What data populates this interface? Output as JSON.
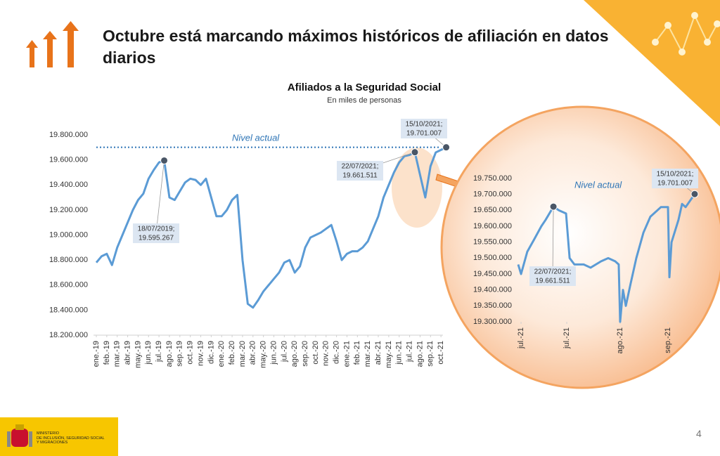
{
  "header": {
    "title": "Octubre está marcando máximos históricos de afiliación en datos diarios"
  },
  "footer": {
    "ministry": [
      "MINISTERIO",
      "DE INCLUSIÓN, SEGURIDAD SOCIAL",
      "Y MIGRACIONES"
    ],
    "page": "4"
  },
  "chart_data": [
    {
      "type": "line",
      "title": "Afiliados a la Seguridad Social",
      "subtitle": "En miles de personas",
      "x": [
        0,
        0.5,
        1,
        1.5,
        2,
        2.5,
        3,
        3.5,
        4,
        4.5,
        5,
        5.5,
        6,
        6.5,
        7,
        7.5,
        8,
        8.5,
        9,
        9.5,
        10,
        10.5,
        11,
        11.5,
        12,
        12.5,
        13,
        13.5,
        14,
        14.5,
        15,
        15.5,
        16,
        16.5,
        17,
        17.5,
        18,
        18.5,
        19,
        19.5,
        20,
        20.5,
        21,
        21.5,
        22,
        22.5,
        23,
        23.5,
        24,
        24.5,
        25,
        25.5,
        26,
        26.5,
        27,
        27.5,
        28,
        28.5,
        29,
        29.5,
        30,
        30.5,
        31,
        31.5,
        32,
        32.5,
        33,
        33.5
      ],
      "series": [
        {
          "color": "#5b9bd5",
          "values": [
            18780000,
            18830000,
            18850000,
            18760000,
            18900000,
            19000000,
            19100000,
            19200000,
            19280000,
            19330000,
            19450000,
            19520000,
            19580000,
            19595267,
            19300000,
            19280000,
            19350000,
            19420000,
            19450000,
            19440000,
            19400000,
            19450000,
            19300000,
            19150000,
            19150000,
            19200000,
            19280000,
            19320000,
            18800000,
            18450000,
            18420000,
            18480000,
            18550000,
            18600000,
            18650000,
            18700000,
            18780000,
            18800000,
            18700000,
            18750000,
            18900000,
            18980000,
            19000000,
            19020000,
            19050000,
            19080000,
            18950000,
            18800000,
            18850000,
            18870000,
            18870000,
            18900000,
            18950000,
            19050000,
            19150000,
            19300000,
            19400000,
            19500000,
            19580000,
            19630000,
            19640000,
            19661511,
            19480000,
            19300000,
            19550000,
            19660000,
            19680000,
            19701007
          ]
        }
      ],
      "xlim": [
        0,
        34
      ],
      "xticks": [
        {
          "value": 0,
          "label": "ene.-19"
        },
        {
          "value": 1,
          "label": "feb.-19"
        },
        {
          "value": 2,
          "label": "mar.-19"
        },
        {
          "value": 3,
          "label": "abr.-19"
        },
        {
          "value": 4,
          "label": "may.-19"
        },
        {
          "value": 5,
          "label": "jun.-19"
        },
        {
          "value": 6,
          "label": "jul.-19"
        },
        {
          "value": 7,
          "label": "ago.-19"
        },
        {
          "value": 8,
          "label": "sep.-19"
        },
        {
          "value": 9,
          "label": "oct.-19"
        },
        {
          "value": 10,
          "label": "nov.-19"
        },
        {
          "value": 11,
          "label": "dic.-19"
        },
        {
          "value": 12,
          "label": "ene.-20"
        },
        {
          "value": 13,
          "label": "feb.-20"
        },
        {
          "value": 14,
          "label": "mar.-20"
        },
        {
          "value": 15,
          "label": "abr.-20"
        },
        {
          "value": 16,
          "label": "may.-20"
        },
        {
          "value": 17,
          "label": "jun.-20"
        },
        {
          "value": 18,
          "label": "jul.-20"
        },
        {
          "value": 19,
          "label": "ago.-20"
        },
        {
          "value": 20,
          "label": "sep.-20"
        },
        {
          "value": 21,
          "label": "oct.-20"
        },
        {
          "value": 22,
          "label": "nov.-20"
        },
        {
          "value": 23,
          "label": "dic.-20"
        },
        {
          "value": 24,
          "label": "ene.-21"
        },
        {
          "value": 25,
          "label": "feb.-21"
        },
        {
          "value": 26,
          "label": "mar.-21"
        },
        {
          "value": 27,
          "label": "abr.-21"
        },
        {
          "value": 28,
          "label": "may.-21"
        },
        {
          "value": 29,
          "label": "jun.-21"
        },
        {
          "value": 30,
          "label": "jul.-21"
        },
        {
          "value": 31,
          "label": "ago.-21"
        },
        {
          "value": 32,
          "label": "sep.-21"
        },
        {
          "value": 33,
          "label": "oct.-21"
        }
      ],
      "ylim": [
        18200000,
        19800000
      ],
      "yticks": [
        {
          "value": 18200000,
          "label": "18.200.000"
        },
        {
          "value": 18400000,
          "label": "18.400.000"
        },
        {
          "value": 18600000,
          "label": "18.600.000"
        },
        {
          "value": 18800000,
          "label": "18.800.000"
        },
        {
          "value": 19000000,
          "label": "19.000.000"
        },
        {
          "value": 19200000,
          "label": "19.200.000"
        },
        {
          "value": 19400000,
          "label": "19.400.000"
        },
        {
          "value": 19600000,
          "label": "19.600.000"
        },
        {
          "value": 19800000,
          "label": "19.800.000"
        }
      ],
      "reference_line": {
        "label": "Nivel actual",
        "value": 19701007
      },
      "annotations": [
        {
          "text": [
            "18/07/2019;",
            "19.595.267"
          ]
        },
        {
          "text": [
            "22/07/2021;",
            "19.661.511"
          ]
        },
        {
          "text": [
            "15/10/2021;",
            "19.701.007"
          ]
        }
      ]
    },
    {
      "type": "line",
      "x": [
        0,
        1.6,
        5.1,
        9.1,
        13,
        15.4,
        19.8,
        22.9,
        26.9,
        28.9,
        31.6,
        36.8,
        40.7,
        46.6,
        50.6,
        54.5,
        56.5,
        57.3,
        58.9,
        60.5,
        63.2,
        66.4,
        70.4,
        74.3,
        80.2,
        84.2,
        85,
        86.2,
        90.1,
        92.1,
        94.1,
        99.2
      ],
      "series": [
        {
          "color": "#5b9bd5",
          "values": [
            19480000,
            19450000,
            19520000,
            19560000,
            19600000,
            19620000,
            19661511,
            19650000,
            19640000,
            19500000,
            19480000,
            19480000,
            19470000,
            19490000,
            19500000,
            19490000,
            19480000,
            19300000,
            19400000,
            19350000,
            19420000,
            19500000,
            19580000,
            19630000,
            19660000,
            19660000,
            19440000,
            19550000,
            19620000,
            19670000,
            19660000,
            19701007
          ]
        }
      ],
      "xlim": [
        0,
        100
      ],
      "xticks": [
        {
          "value": 1.6,
          "label": "jul.-21"
        },
        {
          "value": 27.3,
          "label": "jul.-21"
        },
        {
          "value": 57.3,
          "label": "ago.-21"
        },
        {
          "value": 84.2,
          "label": "sep.-21"
        }
      ],
      "ylim": [
        19300000,
        19750000
      ],
      "yticks": [
        {
          "value": 19300000,
          "label": "19.300.000"
        },
        {
          "value": 19350000,
          "label": "19.350.000"
        },
        {
          "value": 19400000,
          "label": "19.400.000"
        },
        {
          "value": 19450000,
          "label": "19.450.000"
        },
        {
          "value": 19500000,
          "label": "19.500.000"
        },
        {
          "value": 19550000,
          "label": "19.550.000"
        },
        {
          "value": 19600000,
          "label": "19.600.000"
        },
        {
          "value": 19650000,
          "label": "19.650.000"
        },
        {
          "value": 19700000,
          "label": "19.700.000"
        },
        {
          "value": 19750000,
          "label": "19.750.000"
        }
      ],
      "reference_label": "Nivel actual",
      "annotations": [
        {
          "text": [
            "22/07/2021;",
            "19.661.511"
          ]
        },
        {
          "text": [
            "15/10/2021;",
            "19.701.007"
          ]
        }
      ]
    }
  ]
}
